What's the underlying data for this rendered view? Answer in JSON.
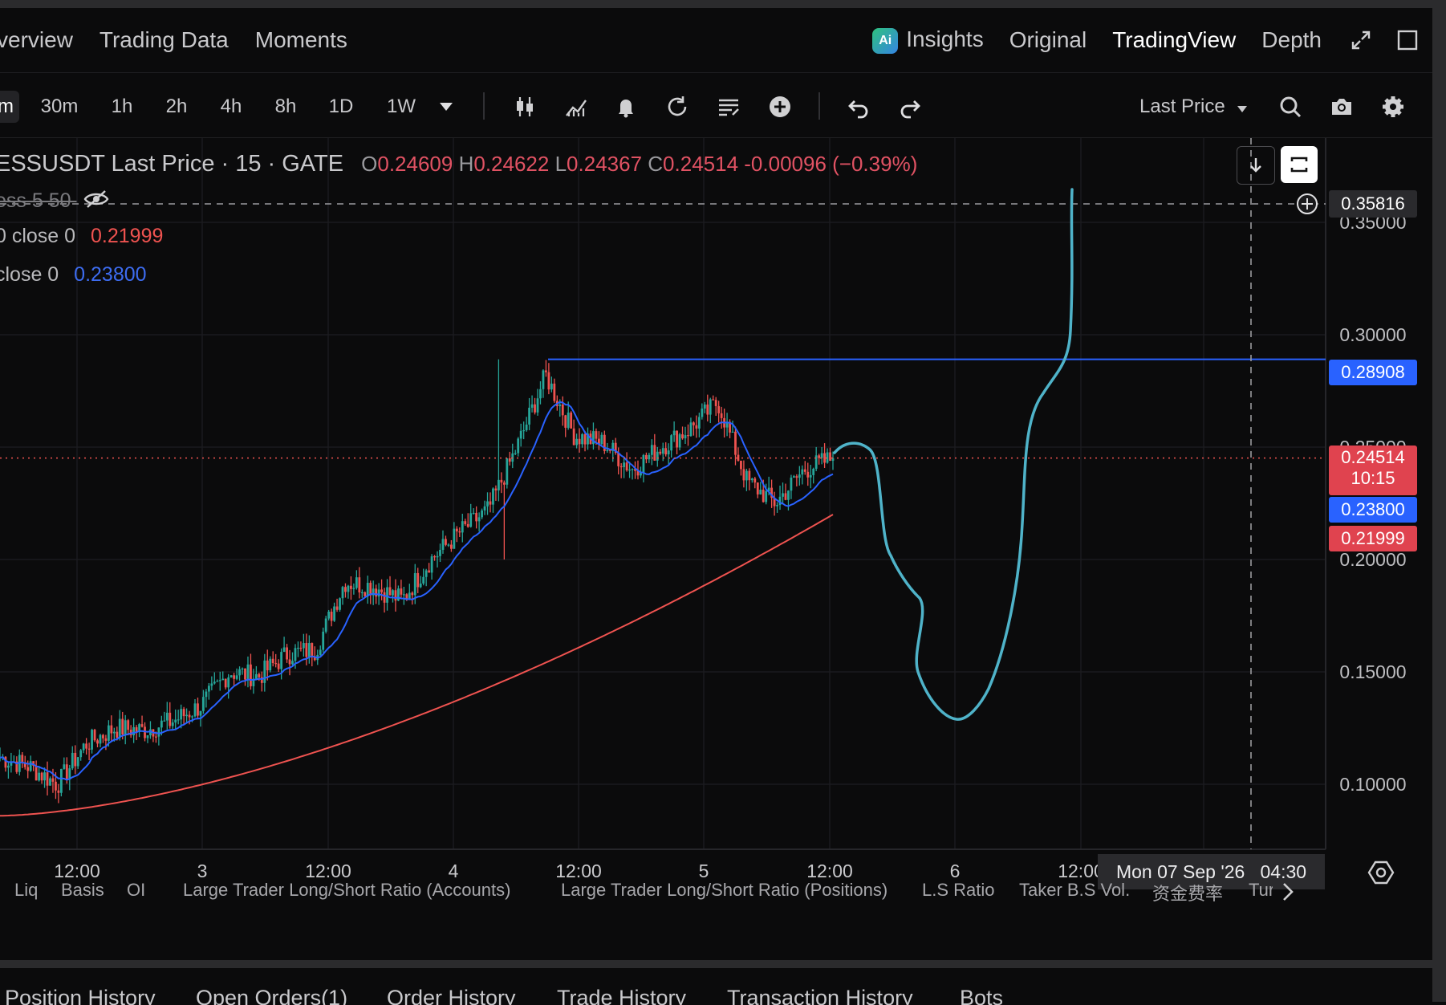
{
  "top_nav": {
    "left_tabs": [
      "verview",
      "Trading Data",
      "Moments"
    ],
    "right_tabs": [
      "Insights",
      "Original",
      "TradingView",
      "Depth"
    ],
    "active_tab": "TradingView",
    "insights_badge": "Ai"
  },
  "toolbar": {
    "timeframes": [
      "m",
      "30m",
      "1h",
      "2h",
      "4h",
      "8h",
      "1D",
      "1W"
    ],
    "active_timeframe": "m",
    "price_type": "Last Price"
  },
  "legend": {
    "symbol": "ESSUSDT Last Price · 15 · GATE",
    "o_label": "O",
    "o_value": "0.24609",
    "h_label": "H",
    "h_value": "0.24622",
    "l_label": "L",
    "l_value": "0.24367",
    "c_label": "C",
    "c_value": "0.24514",
    "change": "-0.00096 (−0.39%)",
    "indicator_hidden": "ess 5 50",
    "ma1_label": "0 close 0",
    "ma1_value": "0.21999",
    "ma2_label": "close 0",
    "ma2_value": "0.23800"
  },
  "price_axis": {
    "ticks": [
      "0.35000",
      "0.30000",
      "0.25000",
      "0.20000",
      "0.15000",
      "0.10000"
    ],
    "crosshair_price": "0.35816",
    "hline_price": "0.28908",
    "last_price": "0.24514",
    "countdown": "10:15",
    "ma2_price": "0.23800",
    "ma1_price": "0.21999"
  },
  "time_axis": {
    "ticks": [
      "12:00",
      "3",
      "12:00",
      "4",
      "12:00",
      "5",
      "12:00",
      "6",
      "12:00"
    ],
    "crosshair_label": "Mon 07 Sep '26   04:30"
  },
  "indicator_tabs": [
    "Liq",
    "Basis",
    "OI",
    "Large Trader Long/Short Ratio (Accounts)",
    "Large Trader Long/Short Ratio (Positions)",
    "L.S Ratio",
    "Taker B.S Vol.",
    "资金费率",
    "Tur"
  ],
  "bottom_tabs": [
    "Position History",
    "Open Orders(1)",
    "Order History",
    "Trade History",
    "Transaction History",
    "Bots"
  ],
  "colors": {
    "background": "#0b0b0c",
    "up": "#26a69a",
    "down": "#ef5350",
    "ma_fast": "#2962ff",
    "ma_slow": "#ef5350",
    "drawing": "#4fb3c9",
    "hline": "#2962ff"
  },
  "chart_data": {
    "type": "candlestick",
    "symbol": "ESSUSDT",
    "interval": "15",
    "y_range": [
      0.08,
      0.38
    ],
    "horizontal_line": 0.28908,
    "last_price": 0.24514,
    "ma_fast_last": 0.238,
    "ma_slow_last": 0.21999,
    "approx_path_close": [
      0.112,
      0.108,
      0.1,
      0.118,
      0.125,
      0.124,
      0.128,
      0.135,
      0.15,
      0.148,
      0.158,
      0.16,
      0.19,
      0.188,
      0.182,
      0.2,
      0.212,
      0.222,
      0.25,
      0.282,
      0.255,
      0.252,
      0.24,
      0.25,
      0.258,
      0.27,
      0.235,
      0.225,
      0.24,
      0.245
    ]
  }
}
